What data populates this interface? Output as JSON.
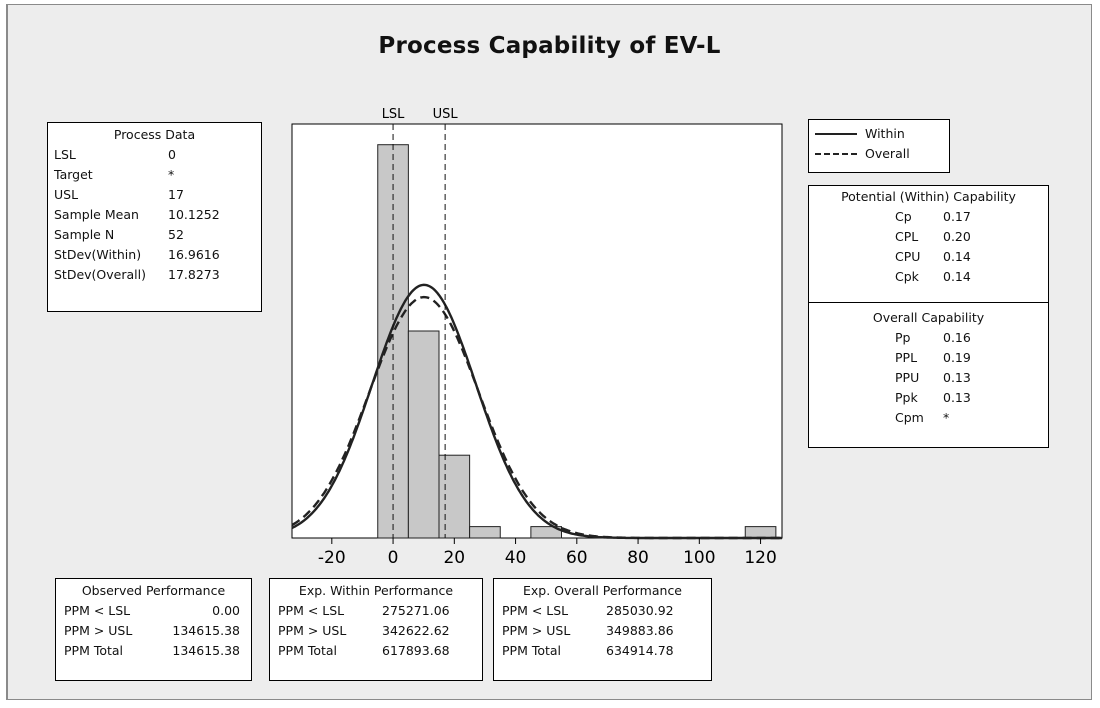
{
  "title": "Process Capability of EV-L",
  "process_data": {
    "heading": "Process Data",
    "rows": [
      {
        "label": "LSL",
        "value": "0"
      },
      {
        "label": "Target",
        "value": "*"
      },
      {
        "label": "USL",
        "value": "17"
      },
      {
        "label": "Sample Mean",
        "value": "10.1252"
      },
      {
        "label": "Sample N",
        "value": "52"
      },
      {
        "label": "StDev(Within)",
        "value": "16.9616"
      },
      {
        "label": "StDev(Overall)",
        "value": "17.8273"
      }
    ]
  },
  "legend": {
    "within": "Within",
    "overall": "Overall"
  },
  "potential_capability": {
    "heading": "Potential (Within) Capability",
    "rows": [
      {
        "label": "Cp",
        "value": "0.17"
      },
      {
        "label": "CPL",
        "value": "0.20"
      },
      {
        "label": "CPU",
        "value": "0.14"
      },
      {
        "label": "Cpk",
        "value": "0.14"
      }
    ]
  },
  "overall_capability": {
    "heading": "Overall Capability",
    "rows": [
      {
        "label": "Pp",
        "value": "0.16"
      },
      {
        "label": "PPL",
        "value": "0.19"
      },
      {
        "label": "PPU",
        "value": "0.13"
      },
      {
        "label": "Ppk",
        "value": "0.13"
      },
      {
        "label": "Cpm",
        "value": "*"
      }
    ]
  },
  "observed_performance": {
    "heading": "Observed Performance",
    "rows": [
      {
        "label": "PPM < LSL",
        "value": "0.00"
      },
      {
        "label": "PPM > USL",
        "value": "134615.38"
      },
      {
        "label": "PPM Total",
        "value": "134615.38"
      }
    ]
  },
  "exp_within_performance": {
    "heading": "Exp. Within Performance",
    "rows": [
      {
        "label": "PPM < LSL",
        "value": "275271.06"
      },
      {
        "label": "PPM > USL",
        "value": "342622.62"
      },
      {
        "label": "PPM Total",
        "value": "617893.68"
      }
    ]
  },
  "exp_overall_performance": {
    "heading": "Exp. Overall Performance",
    "rows": [
      {
        "label": "PPM < LSL",
        "value": "285030.92"
      },
      {
        "label": "PPM > USL",
        "value": "349883.86"
      },
      {
        "label": "PPM Total",
        "value": "634914.78"
      }
    ]
  },
  "chart_data": {
    "type": "bar",
    "title": "Process Capability of EV-L",
    "xlim": [
      -33,
      127
    ],
    "ylim": [
      0,
      20
    ],
    "xticks": [
      -20,
      0,
      20,
      40,
      60,
      80,
      100,
      120
    ],
    "bins": [
      {
        "x0": -5,
        "x1": 5,
        "count": 19
      },
      {
        "x0": 5,
        "x1": 15,
        "count": 10
      },
      {
        "x0": 15,
        "x1": 25,
        "count": 4
      },
      {
        "x0": 25,
        "x1": 35,
        "count": 0.55
      },
      {
        "x0": 45,
        "x1": 55,
        "count": 0.55
      },
      {
        "x0": 115,
        "x1": 125,
        "count": 0.55
      }
    ],
    "spec_lines": [
      {
        "label": "LSL",
        "value": 0
      },
      {
        "label": "USL",
        "value": 17
      }
    ],
    "series": [
      {
        "name": "Within",
        "mean": 10.1252,
        "stdev": 16.9616,
        "style": "solid"
      },
      {
        "name": "Overall",
        "mean": 10.1252,
        "stdev": 17.8273,
        "style": "dashed"
      }
    ],
    "sample_n": 52,
    "bin_width": 10,
    "grid": false,
    "bar_color": "#c8c8c8"
  }
}
